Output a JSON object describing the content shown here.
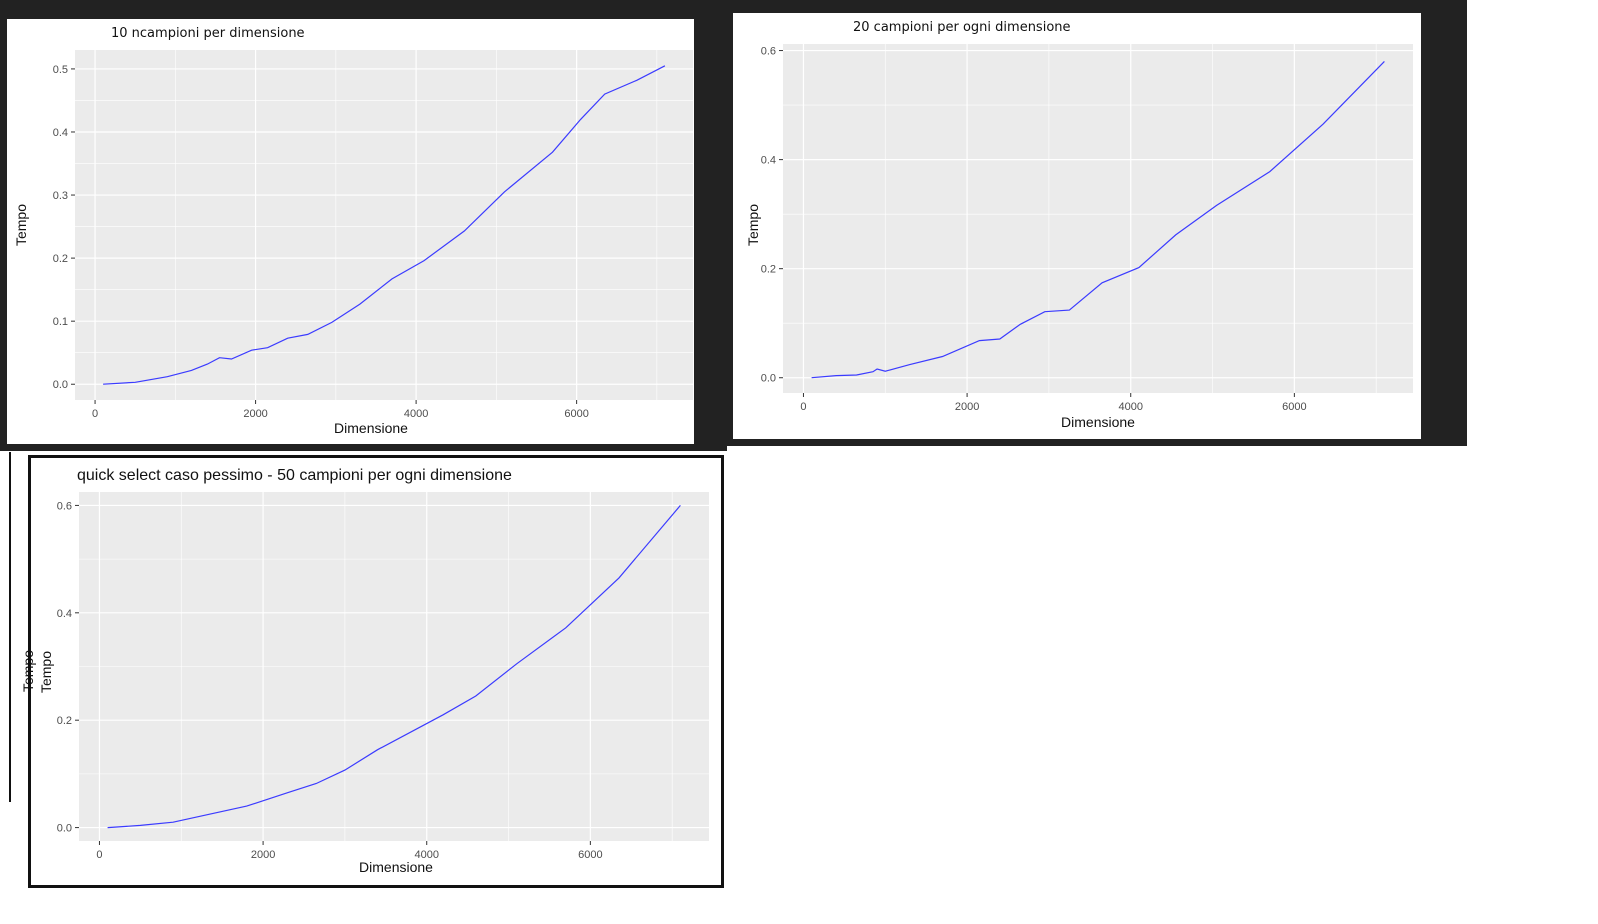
{
  "colors": {
    "line": "#3b3bff",
    "panel_bg": "#ebebeb",
    "grid": "#ffffff"
  },
  "chart_data": [
    {
      "type": "line",
      "title": "10 ncampioni per dimensione",
      "xlabel": "Dimensione",
      "ylabel": "Tempo",
      "xlim": [
        -250,
        7450
      ],
      "ylim": [
        -0.025,
        0.53
      ],
      "xticks": [
        0,
        2000,
        4000,
        6000
      ],
      "xtick_labels": [
        "0",
        "2000",
        "4000",
        "6000"
      ],
      "yticks": [
        0,
        0.1,
        0.2,
        0.3,
        0.4,
        0.5
      ],
      "ytick_labels": [
        "0.0",
        "0.1",
        "0.2",
        "0.3",
        "0.4",
        "0.5"
      ],
      "grid": true,
      "series": [
        {
          "x": [
            100,
            500,
            900,
            1200,
            1400,
            1550,
            1700,
            1950,
            2150,
            2400,
            2650,
            2950,
            3300,
            3700,
            4100,
            4600,
            5100,
            5700,
            6050,
            6350,
            6750,
            7100
          ],
          "y": [
            0.0,
            0.003,
            0.012,
            0.022,
            0.032,
            0.042,
            0.04,
            0.054,
            0.058,
            0.073,
            0.079,
            0.098,
            0.127,
            0.167,
            0.196,
            0.243,
            0.305,
            0.368,
            0.42,
            0.46,
            0.482,
            0.505
          ]
        }
      ]
    },
    {
      "type": "line",
      "title": "20 campioni per ogni dimensione",
      "xlabel": "Dimensione",
      "ylabel": "Tempo",
      "xlim": [
        -250,
        7450
      ],
      "ylim": [
        -0.028,
        0.612
      ],
      "xticks": [
        0,
        2000,
        4000,
        6000
      ],
      "xtick_labels": [
        "0",
        "2000",
        "4000",
        "6000"
      ],
      "yticks": [
        0,
        0.2,
        0.4,
        0.6
      ],
      "ytick_labels": [
        "0.0",
        "0.2",
        "0.4",
        "0.6"
      ],
      "grid": true,
      "series": [
        {
          "x": [
            100,
            400,
            650,
            850,
            900,
            1000,
            1300,
            1700,
            2150,
            2400,
            2650,
            2950,
            3250,
            3650,
            4100,
            4550,
            5050,
            5700,
            6350,
            7100
          ],
          "y": [
            0.0,
            0.004,
            0.005,
            0.011,
            0.016,
            0.012,
            0.024,
            0.039,
            0.068,
            0.071,
            0.098,
            0.121,
            0.124,
            0.174,
            0.202,
            0.262,
            0.316,
            0.378,
            0.465,
            0.58
          ]
        }
      ]
    },
    {
      "type": "line",
      "title": "quick select caso pessimo - 50 campioni per ogni dimensione",
      "xlabel": "Dimensione",
      "ylabel": "Tempo",
      "ylabel_overlap": "Tempo",
      "xlim": [
        -250,
        7450
      ],
      "ylim": [
        -0.025,
        0.625
      ],
      "xticks": [
        0,
        2000,
        4000,
        6000
      ],
      "xtick_labels": [
        "0",
        "2000",
        "4000",
        "6000"
      ],
      "yticks": [
        0,
        0.2,
        0.4,
        0.6
      ],
      "ytick_labels": [
        "0.0",
        "0.2",
        "0.4",
        "0.6"
      ],
      "grid": true,
      "series": [
        {
          "x": [
            100,
            500,
            900,
            1200,
            1800,
            2300,
            2650,
            3000,
            3400,
            4200,
            4600,
            5100,
            5700,
            6350,
            7100
          ],
          "y": [
            0.0,
            0.004,
            0.01,
            0.02,
            0.04,
            0.065,
            0.082,
            0.107,
            0.145,
            0.21,
            0.245,
            0.305,
            0.372,
            0.465,
            0.6
          ]
        }
      ]
    }
  ]
}
